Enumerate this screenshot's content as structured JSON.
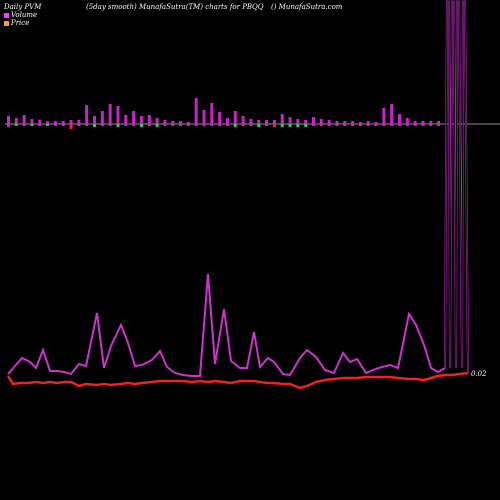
{
  "header": {
    "left": "Daily PVM",
    "center": "(5day smooth) MunafaSutra(TM) charts for PBQQ",
    "right": "() MunafaSutra.com"
  },
  "legend": {
    "volume_label": "Volume",
    "price_label": "Price",
    "volume_color": "#ff33ff",
    "price_color": "#ff9933"
  },
  "colors": {
    "background": "#000000",
    "volume_line": "#cc33cc",
    "price_line": "#ee2222",
    "bar_up": "#cc22cc",
    "bar_down": "#ee2244",
    "bar_flat": "#33cc55",
    "zero_line": "#bbbbbb"
  },
  "chart_data": {
    "type": "line",
    "price_label_text": "0.02",
    "bars": [
      {
        "v": 8,
        "d": 3,
        "c": "up"
      },
      {
        "v": 6,
        "d": 2,
        "c": "flat"
      },
      {
        "v": 9,
        "d": 2,
        "c": "up"
      },
      {
        "v": 5,
        "d": 2,
        "c": "flat"
      },
      {
        "v": 4,
        "d": 2,
        "c": "up"
      },
      {
        "v": 3,
        "d": 2,
        "c": "flat"
      },
      {
        "v": 3,
        "d": 2,
        "c": "up"
      },
      {
        "v": 3,
        "d": 2,
        "c": "up"
      },
      {
        "v": 4,
        "d": 5,
        "c": "down"
      },
      {
        "v": 4,
        "d": 2,
        "c": "up"
      },
      {
        "v": 19,
        "d": 2,
        "c": "up"
      },
      {
        "v": 8,
        "d": 3,
        "c": "flat"
      },
      {
        "v": 13,
        "d": 2,
        "c": "up"
      },
      {
        "v": 20,
        "d": 2,
        "c": "up"
      },
      {
        "v": 18,
        "d": 3,
        "c": "flat"
      },
      {
        "v": 9,
        "d": 2,
        "c": "up"
      },
      {
        "v": 13,
        "d": 2,
        "c": "up"
      },
      {
        "v": 8,
        "d": 3,
        "c": "flat"
      },
      {
        "v": 9,
        "d": 2,
        "c": "up"
      },
      {
        "v": 6,
        "d": 3,
        "c": "flat"
      },
      {
        "v": 4,
        "d": 2,
        "c": "up"
      },
      {
        "v": 3,
        "d": 2,
        "c": "up"
      },
      {
        "v": 3,
        "d": 2,
        "c": "up"
      },
      {
        "v": 2,
        "d": 2,
        "c": "up"
      },
      {
        "v": 26,
        "d": 2,
        "c": "up"
      },
      {
        "v": 14,
        "d": 2,
        "c": "up"
      },
      {
        "v": 21,
        "d": 2,
        "c": "up"
      },
      {
        "v": 12,
        "d": 2,
        "c": "up"
      },
      {
        "v": 6,
        "d": 2,
        "c": "up"
      },
      {
        "v": 13,
        "d": 3,
        "c": "flat"
      },
      {
        "v": 8,
        "d": 2,
        "c": "up"
      },
      {
        "v": 5,
        "d": 2,
        "c": "up"
      },
      {
        "v": 4,
        "d": 3,
        "c": "flat"
      },
      {
        "v": 4,
        "d": 2,
        "c": "up"
      },
      {
        "v": 4,
        "d": 3,
        "c": "down"
      },
      {
        "v": 10,
        "d": 3,
        "c": "flat"
      },
      {
        "v": 7,
        "d": 3,
        "c": "flat"
      },
      {
        "v": 5,
        "d": 3,
        "c": "flat"
      },
      {
        "v": 4,
        "d": 3,
        "c": "flat"
      },
      {
        "v": 7,
        "d": 2,
        "c": "up"
      },
      {
        "v": 5,
        "d": 2,
        "c": "up"
      },
      {
        "v": 4,
        "d": 2,
        "c": "up"
      },
      {
        "v": 3,
        "d": 2,
        "c": "up"
      },
      {
        "v": 3,
        "d": 2,
        "c": "up"
      },
      {
        "v": 3,
        "d": 2,
        "c": "up"
      },
      {
        "v": 2,
        "d": 2,
        "c": "up"
      },
      {
        "v": 3,
        "d": 2,
        "c": "up"
      },
      {
        "v": 2,
        "d": 2,
        "c": "up"
      },
      {
        "v": 16,
        "d": 2,
        "c": "up"
      },
      {
        "v": 20,
        "d": 2,
        "c": "up"
      },
      {
        "v": 10,
        "d": 2,
        "c": "up"
      },
      {
        "v": 6,
        "d": 2,
        "c": "up"
      },
      {
        "v": 3,
        "d": 2,
        "c": "up"
      },
      {
        "v": 3,
        "d": 2,
        "c": "up"
      },
      {
        "v": 3,
        "d": 2,
        "c": "up"
      },
      {
        "v": 3,
        "d": 2,
        "c": "up"
      }
    ],
    "volume_series": [
      [
        8,
        374
      ],
      [
        15,
        366
      ],
      [
        22,
        358
      ],
      [
        30,
        362
      ],
      [
        36,
        368
      ],
      [
        43,
        350
      ],
      [
        50,
        371
      ],
      [
        57,
        371
      ],
      [
        64,
        372
      ],
      [
        71,
        374
      ],
      [
        79,
        364
      ],
      [
        86,
        366
      ],
      [
        97,
        313
      ],
      [
        104,
        368
      ],
      [
        111,
        346
      ],
      [
        121,
        325
      ],
      [
        128,
        343
      ],
      [
        135,
        366
      ],
      [
        142,
        365
      ],
      [
        152,
        360
      ],
      [
        160,
        351
      ],
      [
        167,
        367
      ],
      [
        175,
        373
      ],
      [
        183,
        375
      ],
      [
        192,
        376
      ],
      [
        200,
        376
      ],
      [
        208,
        274
      ],
      [
        215,
        364
      ],
      [
        224,
        309
      ],
      [
        231,
        361
      ],
      [
        240,
        368
      ],
      [
        247,
        368
      ],
      [
        254,
        332
      ],
      [
        260,
        367
      ],
      [
        268,
        358
      ],
      [
        274,
        362
      ],
      [
        283,
        374
      ],
      [
        290,
        375
      ],
      [
        300,
        358
      ],
      [
        307,
        350
      ],
      [
        316,
        357
      ],
      [
        325,
        370
      ],
      [
        334,
        373
      ],
      [
        343,
        353
      ],
      [
        350,
        362
      ],
      [
        357,
        359
      ],
      [
        366,
        373
      ],
      [
        373,
        370
      ],
      [
        382,
        367
      ],
      [
        390,
        365
      ],
      [
        398,
        368
      ],
      [
        409,
        314
      ],
      [
        416,
        325
      ],
      [
        424,
        345
      ],
      [
        431,
        368
      ],
      [
        438,
        372
      ],
      [
        445,
        368
      ]
    ],
    "volume_spikes": [
      [
        445,
        368
      ],
      [
        447,
        0
      ],
      [
        449,
        0
      ],
      [
        450,
        368
      ],
      [
        452,
        0
      ],
      [
        454,
        0
      ],
      [
        456,
        368
      ],
      [
        457,
        0
      ],
      [
        459,
        0
      ],
      [
        462,
        368
      ],
      [
        463,
        0
      ],
      [
        465,
        0
      ],
      [
        468,
        373
      ]
    ],
    "price_series": [
      [
        8,
        376
      ],
      [
        13,
        384
      ],
      [
        20,
        383
      ],
      [
        28,
        383
      ],
      [
        36,
        382
      ],
      [
        43,
        383
      ],
      [
        50,
        382
      ],
      [
        57,
        383
      ],
      [
        64,
        382
      ],
      [
        71,
        382
      ],
      [
        79,
        386
      ],
      [
        86,
        384
      ],
      [
        97,
        385
      ],
      [
        104,
        384
      ],
      [
        111,
        385
      ],
      [
        121,
        384
      ],
      [
        128,
        383
      ],
      [
        135,
        384
      ],
      [
        142,
        383
      ],
      [
        152,
        382
      ],
      [
        160,
        381
      ],
      [
        167,
        381
      ],
      [
        175,
        381
      ],
      [
        183,
        381
      ],
      [
        192,
        382
      ],
      [
        200,
        381
      ],
      [
        208,
        382
      ],
      [
        215,
        381
      ],
      [
        224,
        382
      ],
      [
        231,
        383
      ],
      [
        240,
        381
      ],
      [
        247,
        381
      ],
      [
        254,
        381
      ],
      [
        260,
        382
      ],
      [
        268,
        383
      ],
      [
        274,
        383
      ],
      [
        283,
        384
      ],
      [
        290,
        384
      ],
      [
        300,
        388
      ],
      [
        307,
        386
      ],
      [
        316,
        382
      ],
      [
        325,
        380
      ],
      [
        334,
        379
      ],
      [
        343,
        378
      ],
      [
        350,
        378
      ],
      [
        357,
        378
      ],
      [
        366,
        377
      ],
      [
        373,
        377
      ],
      [
        382,
        377
      ],
      [
        390,
        377
      ],
      [
        398,
        378
      ],
      [
        409,
        379
      ],
      [
        416,
        379
      ],
      [
        424,
        380
      ],
      [
        431,
        378
      ],
      [
        438,
        376
      ],
      [
        445,
        375
      ],
      [
        452,
        375
      ],
      [
        460,
        374
      ],
      [
        468,
        373
      ]
    ]
  }
}
